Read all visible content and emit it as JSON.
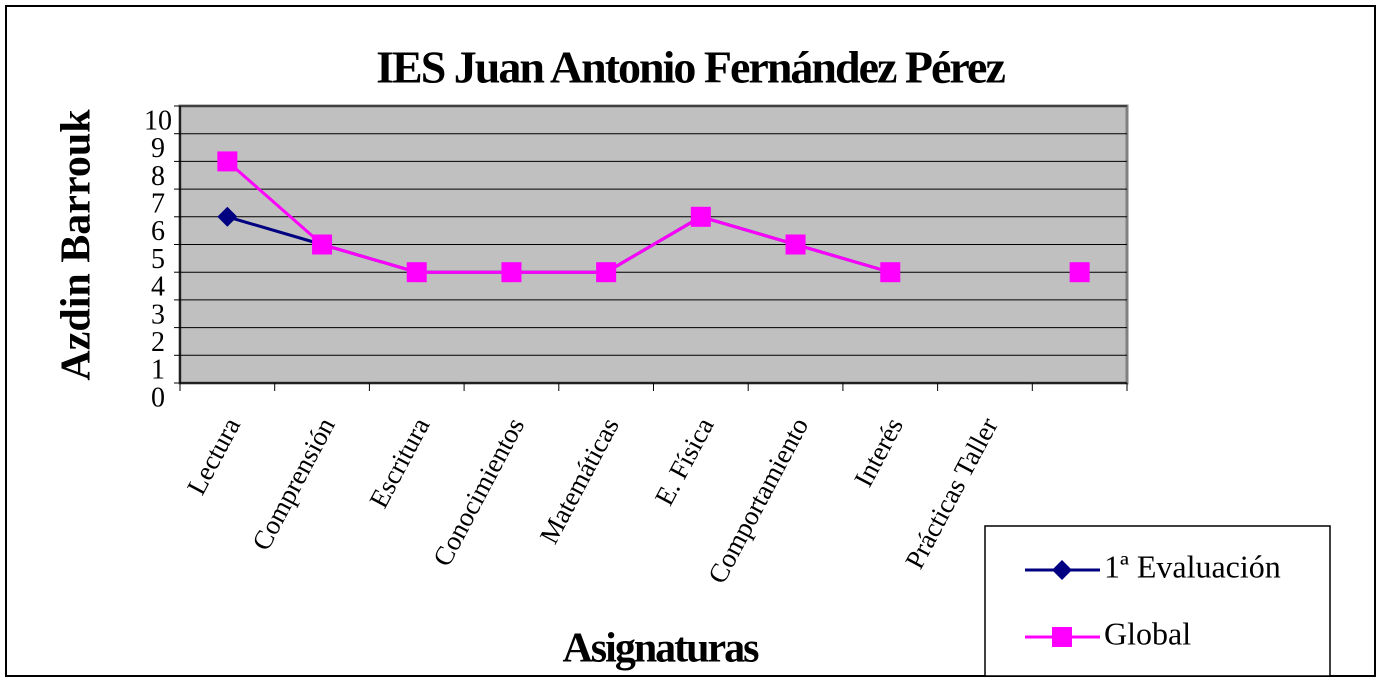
{
  "chart_data": {
    "type": "line",
    "title": "IES Juan Antonio Fernández Pérez",
    "y_label": "Azdin Barrouk",
    "x_label": "Asignaturas",
    "categories": [
      "Lectura",
      "Comprensión",
      "Escritura",
      "Conocimientos",
      "Matemáticas",
      "E. Física",
      "Comportamiento",
      "Interés",
      "Prácticas Taller",
      null
    ],
    "series": [
      {
        "name": "1ª Evaluación",
        "color": "#000080",
        "marker": "diamond",
        "values": [
          6,
          5,
          4,
          4,
          4,
          6,
          5,
          4,
          null,
          4
        ]
      },
      {
        "name": "Global",
        "color": "#ff00ff",
        "marker": "square",
        "values": [
          8,
          5,
          4,
          4,
          4,
          6,
          5,
          4,
          null,
          4
        ]
      }
    ],
    "ylim": [
      0,
      10
    ],
    "yticks": [
      0,
      1,
      2,
      3,
      4,
      5,
      6,
      7,
      8,
      9,
      10
    ],
    "grid": true,
    "legend": "lower right",
    "plot_background": "#c0c0c0"
  }
}
